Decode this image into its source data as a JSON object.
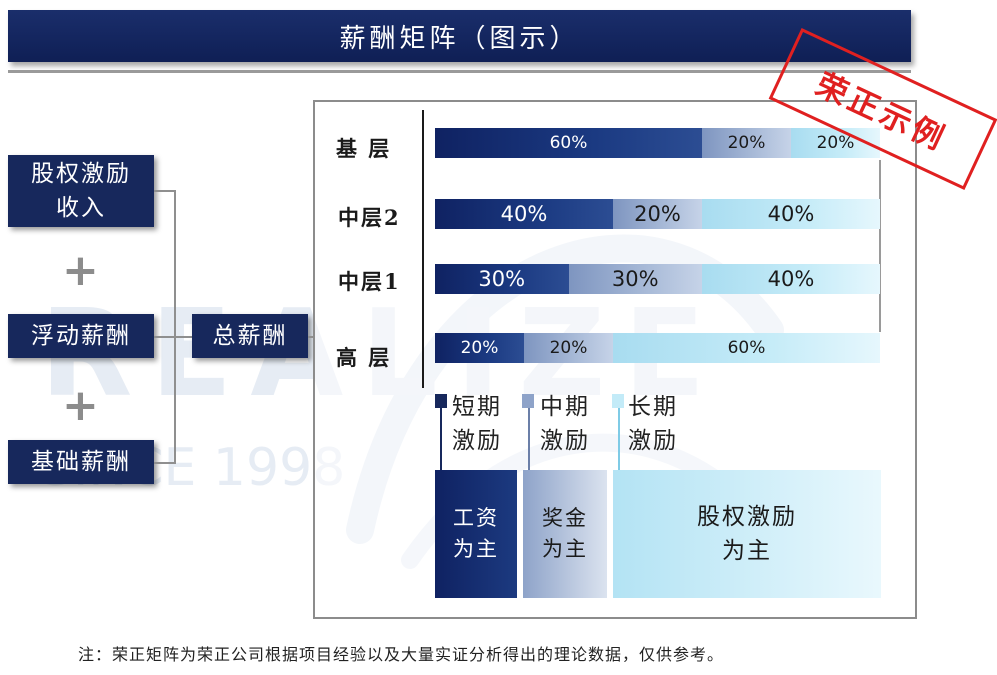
{
  "title": "薪酬矩阵（图示）",
  "watermark": {
    "main": "REALIZE",
    "sub": "SINCE 1998"
  },
  "left": {
    "box1": "股权激励收入",
    "plus": "+",
    "box2": "浮动薪酬",
    "box3": "基础薪酬",
    "total": "总薪酬"
  },
  "chart": {
    "rows": [
      {
        "label": "基 层",
        "short": "60%",
        "mid": "20%",
        "long": "20%"
      },
      {
        "label": "中层2",
        "short": "40%",
        "mid": "20%",
        "long": "40%"
      },
      {
        "label": "中层1",
        "short": "30%",
        "mid": "30%",
        "long": "40%"
      },
      {
        "label": "高 层",
        "short": "20%",
        "mid": "20%",
        "long": "60%"
      }
    ],
    "legend": [
      {
        "line1": "短期",
        "line2": "激励",
        "color": "#17285c"
      },
      {
        "line1": "中期",
        "line2": "激励",
        "color": "#8ea3c9"
      },
      {
        "line1": "长期",
        "line2": "激励",
        "color": "#c3ebf8"
      }
    ],
    "columns": [
      {
        "line1": "工资",
        "line2": "为主"
      },
      {
        "line1": "奖金",
        "line2": "为主"
      },
      {
        "line1": "股权激励",
        "line2": "为主"
      }
    ]
  },
  "chart_data": {
    "type": "bar",
    "stacked": true,
    "categories": [
      "基 层",
      "中层2",
      "中层1",
      "高 层"
    ],
    "series": [
      {
        "name": "短期激励",
        "values": [
          60,
          40,
          30,
          20
        ]
      },
      {
        "name": "中期激励",
        "values": [
          20,
          20,
          30,
          20
        ]
      },
      {
        "name": "长期激励",
        "values": [
          20,
          40,
          40,
          60
        ]
      }
    ]
  },
  "stamp": "荣正示例",
  "note": "注：荣正矩阵为荣正公司根据项目经验以及大量实证分析得出的理论数据，仅供参考。"
}
